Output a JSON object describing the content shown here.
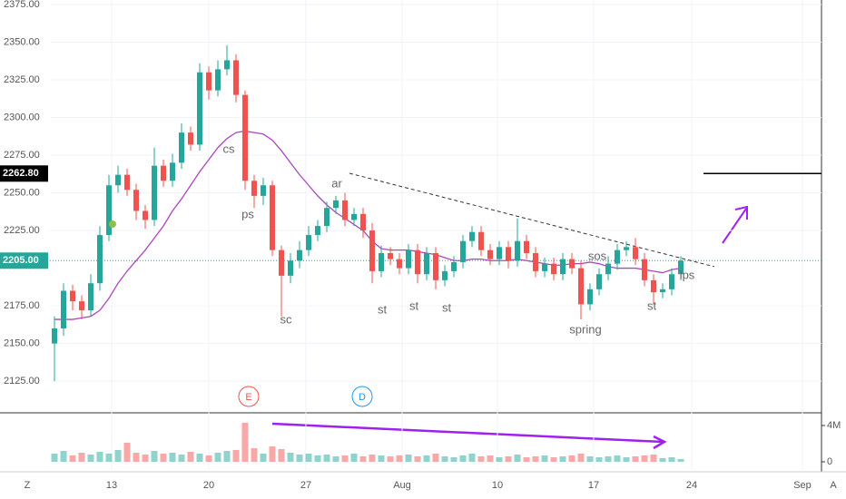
{
  "chart_data": {
    "type": "candlestick",
    "ylim": [
      2104,
      2378
    ],
    "yticks": [
      {
        "value": 2375,
        "label": "2375.00"
      },
      {
        "value": 2350,
        "label": "2350.00"
      },
      {
        "value": 2325,
        "label": "2325.00"
      },
      {
        "value": 2300,
        "label": "2300.00"
      },
      {
        "value": 2275,
        "label": "2275.00"
      },
      {
        "value": 2250,
        "label": "2250.00"
      },
      {
        "value": 2225,
        "label": "2225.00"
      },
      {
        "value": 2175,
        "label": "2175.00"
      },
      {
        "value": 2150,
        "label": "2150.00"
      },
      {
        "value": 2125,
        "label": "2125.00"
      }
    ],
    "x_labels": [
      "13",
      "20",
      "27",
      "Aug",
      "10",
      "17",
      "24",
      "Sep"
    ],
    "up_color": "#26a69a",
    "down_color": "#ef5350",
    "ma_color": "#ab47bc",
    "open": [
      2150,
      2160,
      2185,
      2178,
      2172,
      2190,
      2222,
      2255,
      2262,
      2252,
      2238,
      2232,
      2268,
      2258,
      2270,
      2290,
      2282,
      2330,
      2318,
      2332,
      2338,
      2315,
      2258,
      2248,
      2255,
      2212,
      2195,
      2205,
      2212,
      2222,
      2228,
      2240,
      2245,
      2232,
      2236,
      2225,
      2198,
      2210,
      2206,
      2200,
      2212,
      2196,
      2210,
      2192,
      2198,
      2204,
      2218,
      2224,
      2212,
      2206,
      2214,
      2205,
      2218,
      2210,
      2198,
      2203,
      2196,
      2206,
      2200,
      2176,
      2186,
      2196,
      2203,
      2212,
      2214,
      2206,
      2192,
      2184,
      2186,
      2196
    ],
    "high": [
      2168,
      2190,
      2189,
      2182,
      2196,
      2228,
      2262,
      2268,
      2266,
      2256,
      2242,
      2280,
      2272,
      2276,
      2296,
      2294,
      2336,
      2334,
      2338,
      2348,
      2342,
      2318,
      2262,
      2260,
      2258,
      2215,
      2210,
      2218,
      2228,
      2232,
      2244,
      2248,
      2250,
      2240,
      2240,
      2230,
      2215,
      2214,
      2210,
      2216,
      2216,
      2214,
      2214,
      2202,
      2208,
      2222,
      2228,
      2228,
      2216,
      2218,
      2218,
      2233,
      2222,
      2214,
      2207,
      2207,
      2210,
      2210,
      2205,
      2190,
      2200,
      2208,
      2216,
      2218,
      2220,
      2210,
      2196,
      2190,
      2200,
      2208
    ],
    "low": [
      2125,
      2155,
      2172,
      2166,
      2168,
      2185,
      2218,
      2250,
      2248,
      2232,
      2226,
      2228,
      2254,
      2254,
      2266,
      2278,
      2278,
      2312,
      2314,
      2328,
      2310,
      2252,
      2240,
      2242,
      2208,
      2168,
      2190,
      2200,
      2208,
      2218,
      2224,
      2236,
      2228,
      2228,
      2220,
      2190,
      2194,
      2202,
      2196,
      2196,
      2190,
      2192,
      2186,
      2188,
      2194,
      2200,
      2214,
      2208,
      2202,
      2202,
      2200,
      2201,
      2206,
      2194,
      2194,
      2192,
      2192,
      2196,
      2166,
      2172,
      2182,
      2192,
      2199,
      2208,
      2202,
      2188,
      2176,
      2180,
      2182,
      2192
    ],
    "close": [
      2160,
      2185,
      2178,
      2172,
      2190,
      2222,
      2255,
      2262,
      2252,
      2238,
      2232,
      2268,
      2258,
      2270,
      2290,
      2282,
      2330,
      2318,
      2332,
      2338,
      2315,
      2258,
      2248,
      2255,
      2212,
      2195,
      2205,
      2212,
      2222,
      2228,
      2240,
      2245,
      2232,
      2236,
      2225,
      2198,
      2210,
      2206,
      2200,
      2212,
      2196,
      2210,
      2192,
      2198,
      2204,
      2218,
      2224,
      2212,
      2206,
      2214,
      2205,
      2218,
      2210,
      2198,
      2203,
      2196,
      2206,
      2200,
      2176,
      2186,
      2196,
      2203,
      2212,
      2214,
      2206,
      2192,
      2184,
      2186,
      2196,
      2205
    ],
    "ma": [
      2166,
      2166,
      2166,
      2167,
      2168,
      2172,
      2180,
      2190,
      2198,
      2205,
      2212,
      2220,
      2228,
      2238,
      2246,
      2255,
      2264,
      2272,
      2280,
      2286,
      2290,
      2291,
      2290,
      2289,
      2285,
      2278,
      2270,
      2262,
      2255,
      2248,
      2242,
      2237,
      2233,
      2229,
      2225,
      2218,
      2213,
      2212,
      2212,
      2212,
      2211,
      2210,
      2209,
      2207,
      2205,
      2205,
      2206,
      2206,
      2205,
      2205,
      2205,
      2206,
      2205,
      2204,
      2203,
      2202,
      2202,
      2203,
      2203,
      2204,
      2203,
      2201,
      2200,
      2200,
      2200,
      2199,
      2198,
      2197,
      2199,
      2200
    ],
    "volume": [
      900000,
      1200000,
      700000,
      1000000,
      800000,
      1100000,
      900000,
      1300000,
      2100000,
      1000000,
      800000,
      1200000,
      900000,
      1000000,
      800000,
      1100000,
      900000,
      700000,
      1000000,
      1200000,
      1300000,
      4300000,
      1500000,
      900000,
      1700000,
      1400000,
      1000000,
      800000,
      900000,
      700000,
      800000,
      600000,
      700000,
      900000,
      600000,
      800000,
      700000,
      600000,
      700000,
      800000,
      600000,
      700000,
      900000,
      600000,
      500000,
      700000,
      900000,
      600000,
      700000,
      500000,
      600000,
      800000,
      500000,
      600000,
      700000,
      500000,
      600000,
      700000,
      900000,
      600000,
      500000,
      600000,
      700000,
      500000,
      600000,
      700000,
      800000,
      400000,
      500000,
      300000
    ],
    "vol_ylim": [
      -600000,
      5200000
    ],
    "vol_ticks": [
      {
        "value": 4000000,
        "label": "4M"
      },
      0
    ],
    "price_lines": [
      {
        "value": 2262.8,
        "label": "2262.80",
        "color": "#000000"
      },
      {
        "value": 2205,
        "label": "2205.00",
        "color": "#26a69a"
      }
    ],
    "trendline": [
      2263,
      2201
    ],
    "annotations": [
      "cs",
      "ps",
      "sc",
      "ar",
      "st",
      "st",
      "st",
      "spring",
      "sos",
      "st",
      "lps"
    ],
    "events": [
      "E",
      "D"
    ],
    "corner_left": "Z",
    "corner_right": "A"
  }
}
